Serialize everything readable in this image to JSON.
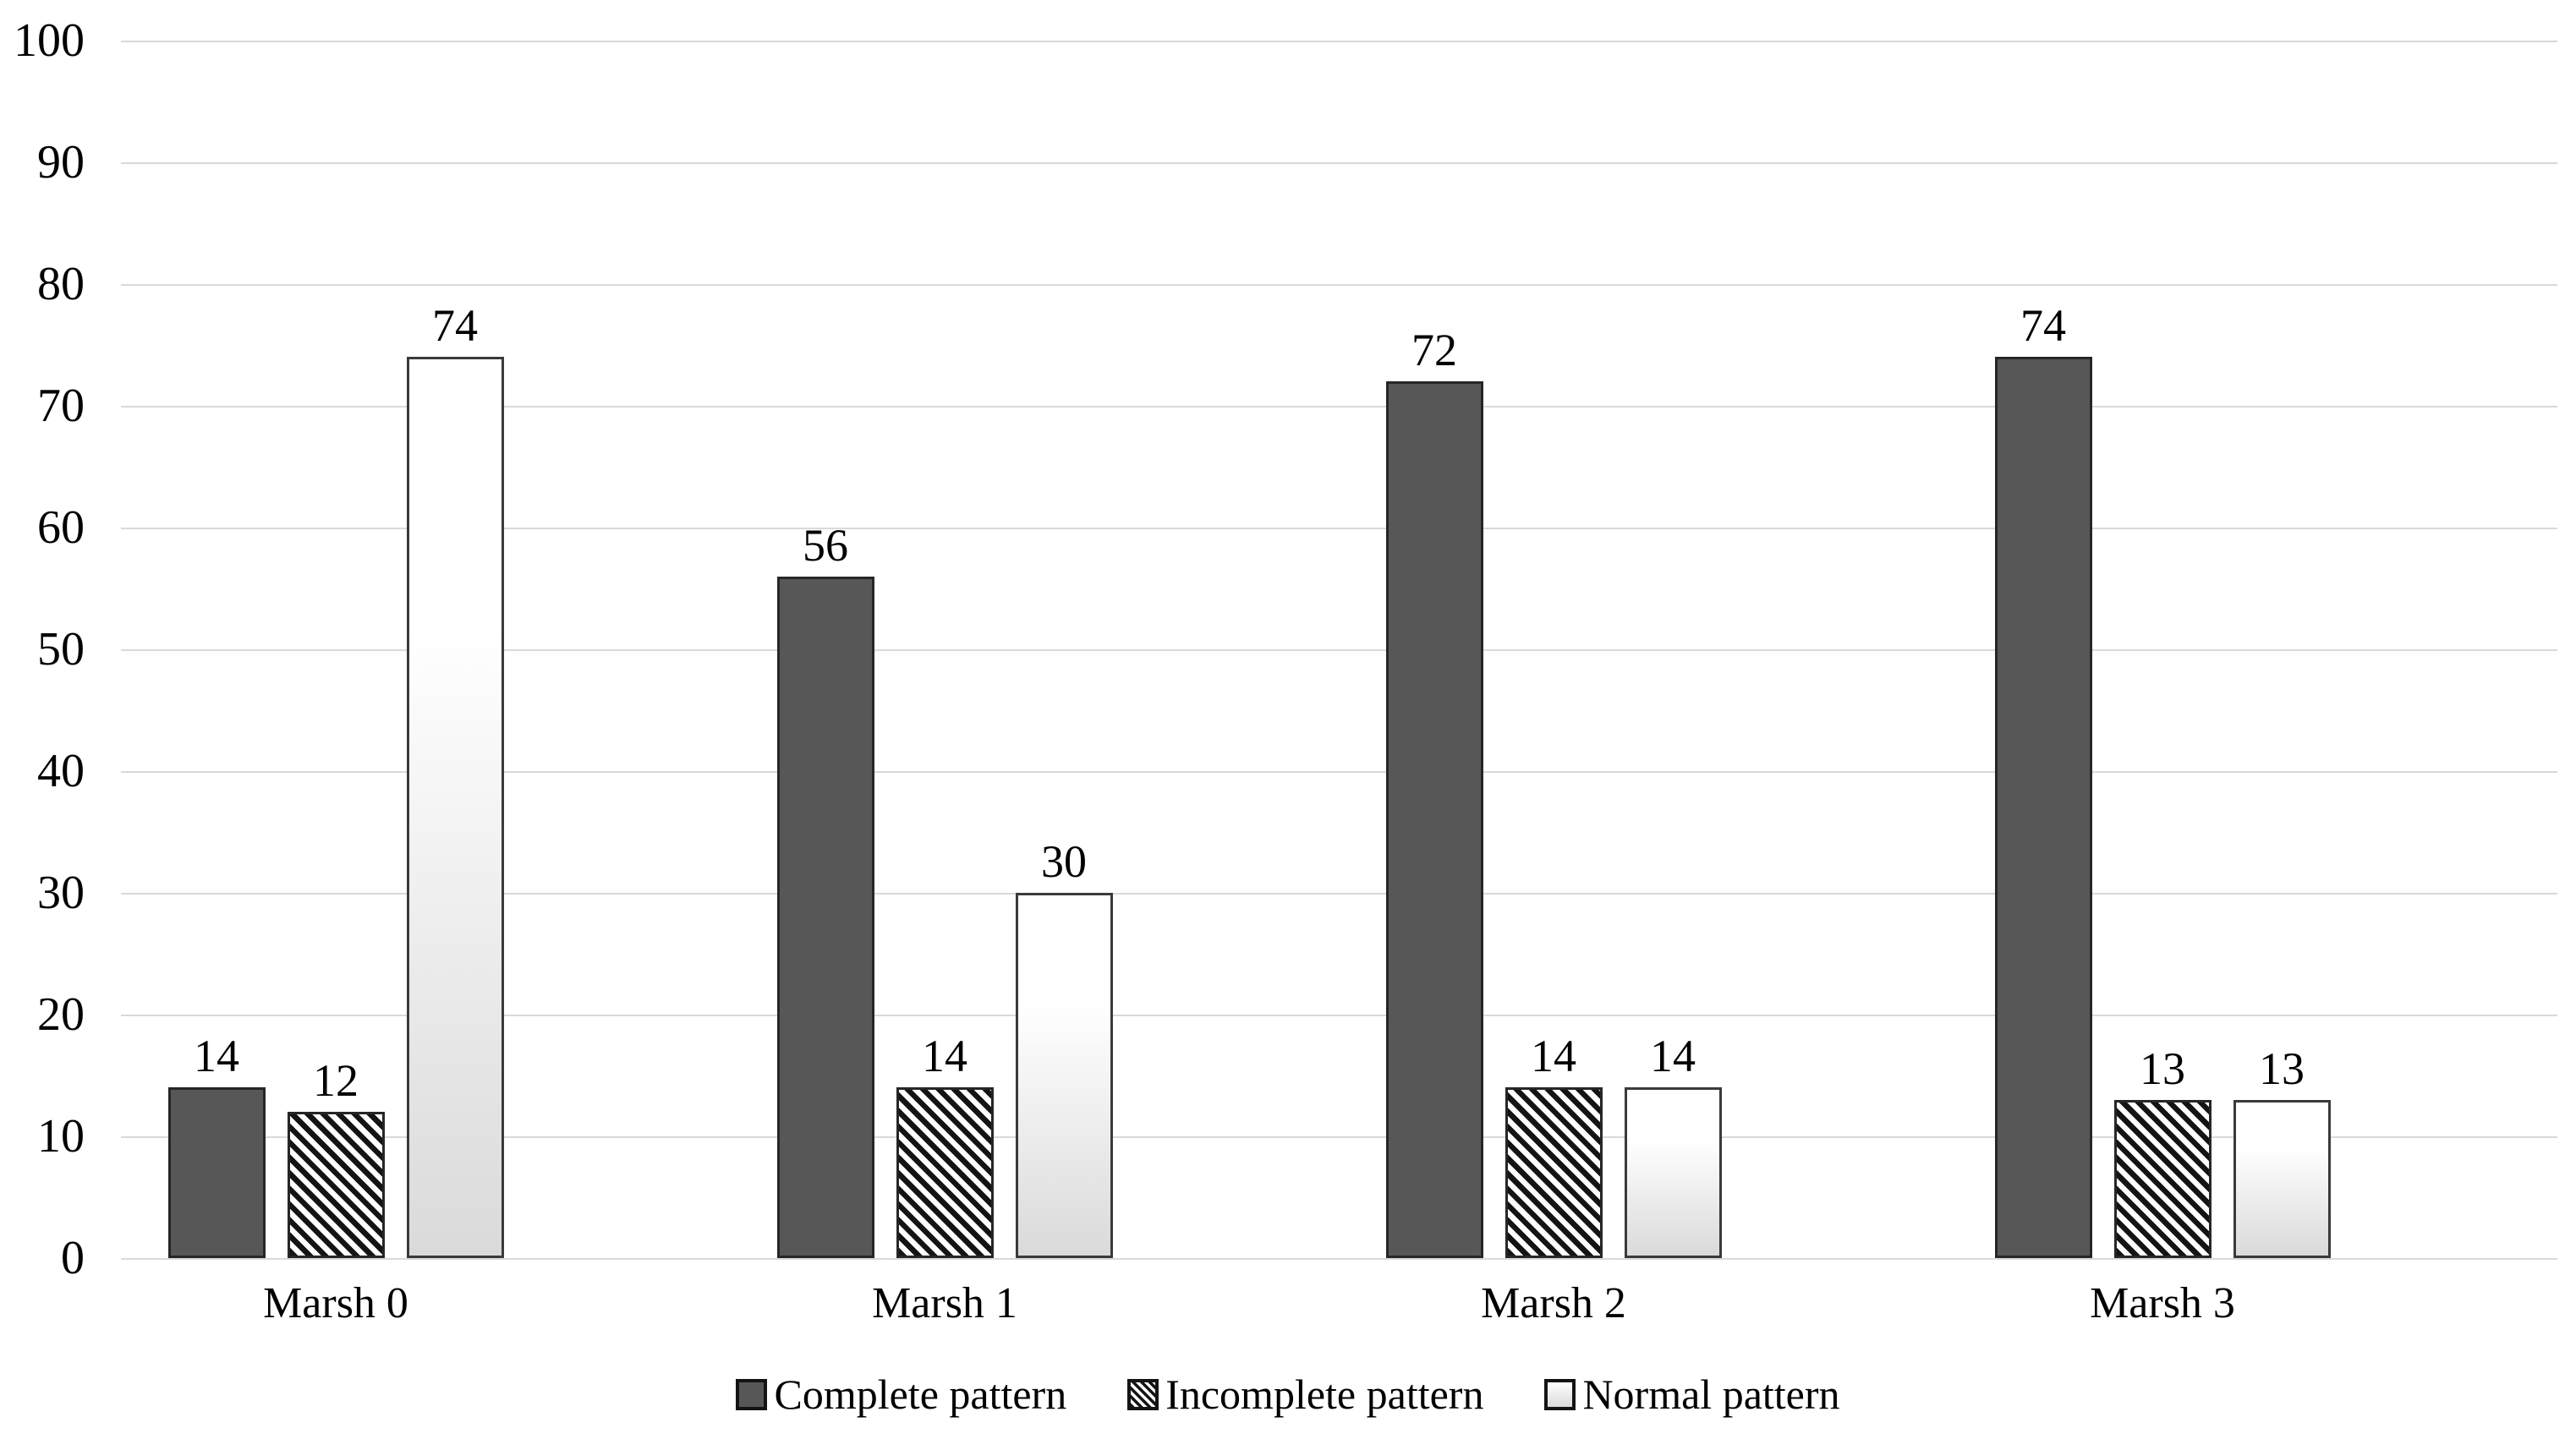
{
  "chart_data": {
    "type": "bar",
    "title": "",
    "xlabel": "",
    "ylabel": "",
    "categories": [
      "Marsh 0",
      "Marsh 1",
      "Marsh 2",
      "Marsh 3"
    ],
    "series": [
      {
        "name": "Complete pattern",
        "pattern": "solid",
        "values": [
          14,
          56,
          72,
          74
        ]
      },
      {
        "name": "Incomplete pattern",
        "pattern": "hatch",
        "values": [
          12,
          14,
          14,
          13
        ]
      },
      {
        "name": "Normal pattern",
        "pattern": "gradient",
        "values": [
          74,
          30,
          14,
          13
        ]
      }
    ],
    "value_labels_shown": true,
    "ylim": [
      0,
      100
    ],
    "ytick_step": 10,
    "ytick_labels": [
      "0",
      "10",
      "20",
      "30",
      "40",
      "50",
      "60",
      "70",
      "80",
      "90",
      "100"
    ],
    "grid": "horizontal",
    "legend_position": "bottom",
    "colors": {
      "complete_fill": "#575757",
      "bar_border": "#262626",
      "hatch_stripe": "#141414",
      "hatch_background": "#ffffff",
      "gradient_top": "#ffffff",
      "gradient_bottom": "#dadada",
      "gridline": "#d9d9d9",
      "text": "#000000",
      "background": "#ffffff"
    }
  }
}
